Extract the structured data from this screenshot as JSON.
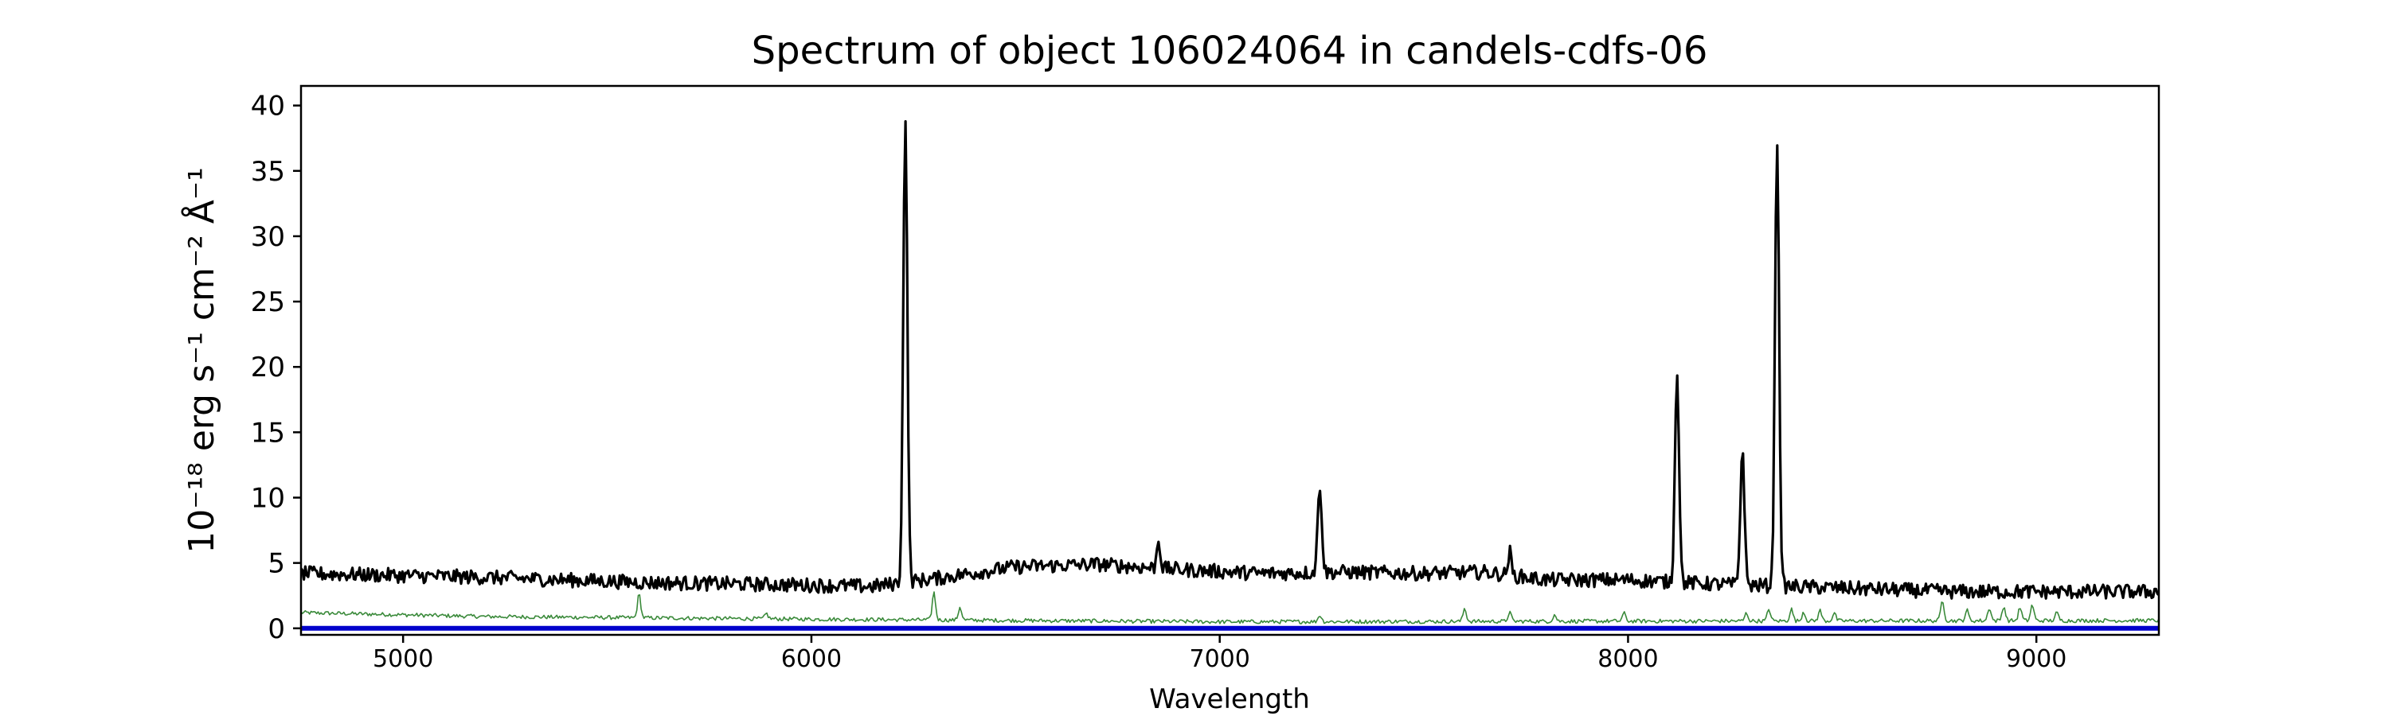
{
  "chart_data": {
    "type": "line",
    "title": "Spectrum of object 106024064 in candels-cdfs-06",
    "xlabel": "Wavelength",
    "ylabel": "10⁻¹⁸ erg s⁻¹ cm⁻² Å⁻¹",
    "xlim": [
      4750,
      9300
    ],
    "ylim": [
      -0.5,
      41.5
    ],
    "x_ticks": [
      5000,
      6000,
      7000,
      8000,
      9000
    ],
    "y_ticks": [
      0,
      5,
      10,
      15,
      20,
      25,
      30,
      35,
      40
    ],
    "grid": false,
    "series": [
      {
        "role": "flux",
        "color": "#000000",
        "baseline": [
          [
            4750,
            4.2
          ],
          [
            5200,
            3.9
          ],
          [
            5600,
            3.5
          ],
          [
            6000,
            3.3
          ],
          [
            6150,
            3.2
          ],
          [
            6300,
            3.8
          ],
          [
            6500,
            4.7
          ],
          [
            6700,
            4.9
          ],
          [
            6900,
            4.5
          ],
          [
            7100,
            4.2
          ],
          [
            7300,
            4.3
          ],
          [
            7500,
            4.2
          ],
          [
            7650,
            4.3
          ],
          [
            7800,
            3.7
          ],
          [
            8000,
            3.7
          ],
          [
            8200,
            3.4
          ],
          [
            8500,
            3.1
          ],
          [
            8800,
            2.8
          ],
          [
            9300,
            2.8
          ]
        ],
        "noise": 0.55,
        "peaks": [
          [
            6230,
            35.5
          ],
          [
            6850,
            2.3
          ],
          [
            7245,
            6.7
          ],
          [
            7710,
            1.8
          ],
          [
            8120,
            16.2
          ],
          [
            8280,
            10.4
          ],
          [
            8365,
            34.3
          ]
        ]
      },
      {
        "role": "noise",
        "color": "#3a8a3a",
        "baseline": [
          [
            4750,
            1.2
          ],
          [
            5200,
            0.9
          ],
          [
            6000,
            0.7
          ],
          [
            7000,
            0.5
          ],
          [
            8000,
            0.55
          ],
          [
            9300,
            0.6
          ]
        ],
        "noise": 0.15,
        "peaks": [
          [
            5578,
            1.8
          ],
          [
            5890,
            0.4
          ],
          [
            6300,
            2.1
          ],
          [
            6364,
            1.0
          ],
          [
            7245,
            0.5
          ],
          [
            7600,
            1.0
          ],
          [
            7710,
            0.7
          ],
          [
            7820,
            0.5
          ],
          [
            7990,
            0.6
          ],
          [
            8290,
            0.6
          ],
          [
            8345,
            0.9
          ],
          [
            8400,
            0.9
          ],
          [
            8430,
            0.7
          ],
          [
            8470,
            0.8
          ],
          [
            8505,
            0.6
          ],
          [
            8770,
            1.6
          ],
          [
            8830,
            0.8
          ],
          [
            8885,
            1.0
          ],
          [
            8920,
            1.1
          ],
          [
            8960,
            1.0
          ],
          [
            8990,
            1.2
          ],
          [
            9050,
            0.6
          ]
        ]
      },
      {
        "role": "zero",
        "color": "#0000cc",
        "baseline": [
          [
            4750,
            0
          ],
          [
            9300,
            0
          ]
        ],
        "noise": 0,
        "peaks": []
      }
    ]
  }
}
